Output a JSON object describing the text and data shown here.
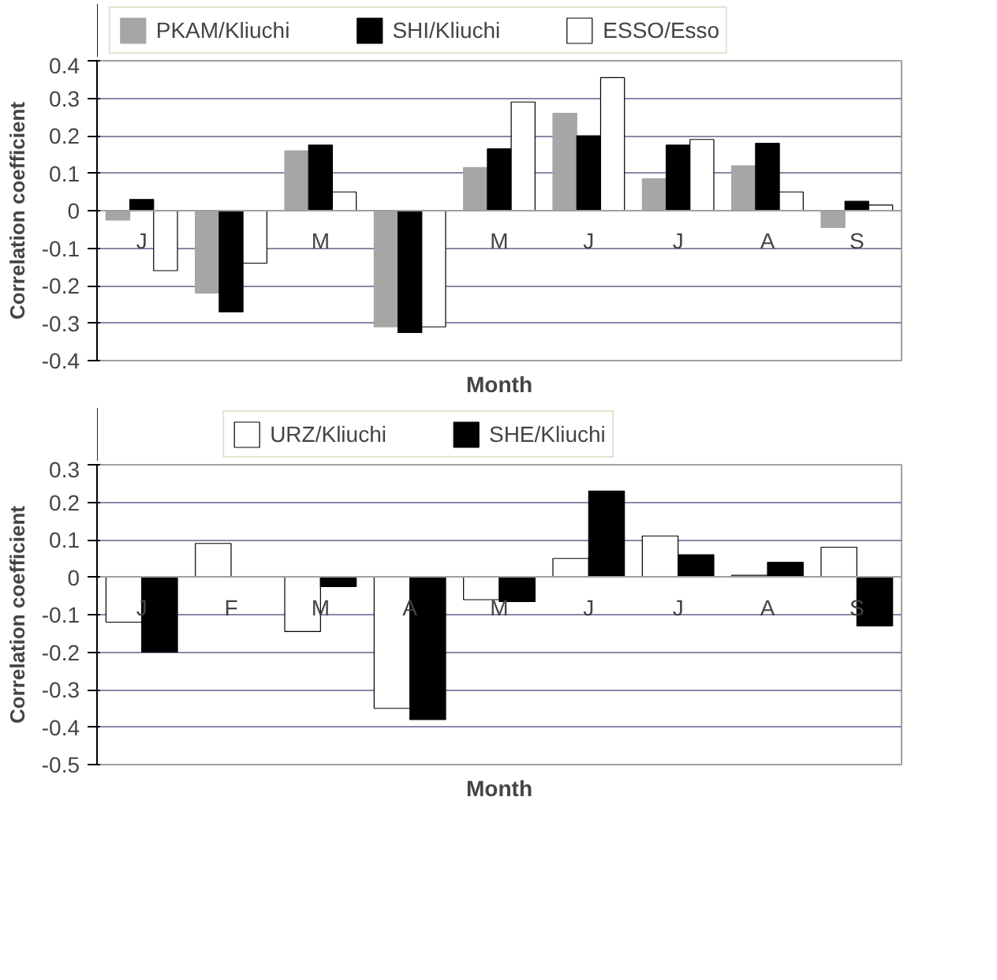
{
  "chart_data": [
    {
      "type": "bar",
      "ylabel": "Correlation coefficient",
      "xlabel": "Month",
      "categories": [
        "J",
        null,
        "M",
        null,
        "M",
        "J",
        "J",
        "A",
        "S"
      ],
      "ylim": [
        -0.4,
        0.4
      ],
      "yticks": [
        -0.4,
        -0.3,
        -0.2,
        -0.1,
        0,
        0.1,
        0.2,
        0.3,
        0.4
      ],
      "grid": "y",
      "legend": "top",
      "series": [
        {
          "name": "PKAM/Kliuchi",
          "color": "#a6a6a6",
          "values": [
            -0.025,
            -0.22,
            0.16,
            -0.31,
            0.115,
            0.26,
            0.085,
            0.12,
            -0.045
          ]
        },
        {
          "name": "SHI/Kliuchi",
          "color": "#000000",
          "values": [
            0.03,
            -0.27,
            0.175,
            -0.325,
            0.165,
            0.2,
            0.175,
            0.18,
            0.025
          ]
        },
        {
          "name": "ESSO/Esso",
          "color": "#ffffff",
          "values": [
            -0.16,
            -0.14,
            0.05,
            -0.31,
            0.29,
            0.355,
            0.19,
            0.05,
            0.015
          ]
        }
      ]
    },
    {
      "type": "bar",
      "ylabel": "Correlation coefficient",
      "xlabel": "Month",
      "categories": [
        "J",
        "F",
        "M",
        "A",
        "M",
        "J",
        "J",
        "A",
        "S"
      ],
      "ylim": [
        -0.5,
        0.3
      ],
      "yticks": [
        -0.5,
        -0.4,
        -0.3,
        -0.2,
        -0.1,
        0,
        0.1,
        0.2,
        0.3
      ],
      "grid": "y",
      "legend": "top",
      "series": [
        {
          "name": "URZ/Kliuchi",
          "color": "#ffffff",
          "values": [
            -0.12,
            0.09,
            -0.145,
            -0.35,
            -0.06,
            0.05,
            0.11,
            0.005,
            0.08
          ]
        },
        {
          "name": "SHE/Kliuchi",
          "color": "#000000",
          "values": [
            -0.2,
            null,
            -0.025,
            -0.38,
            -0.065,
            0.23,
            0.06,
            0.04,
            -0.13
          ]
        }
      ]
    }
  ]
}
